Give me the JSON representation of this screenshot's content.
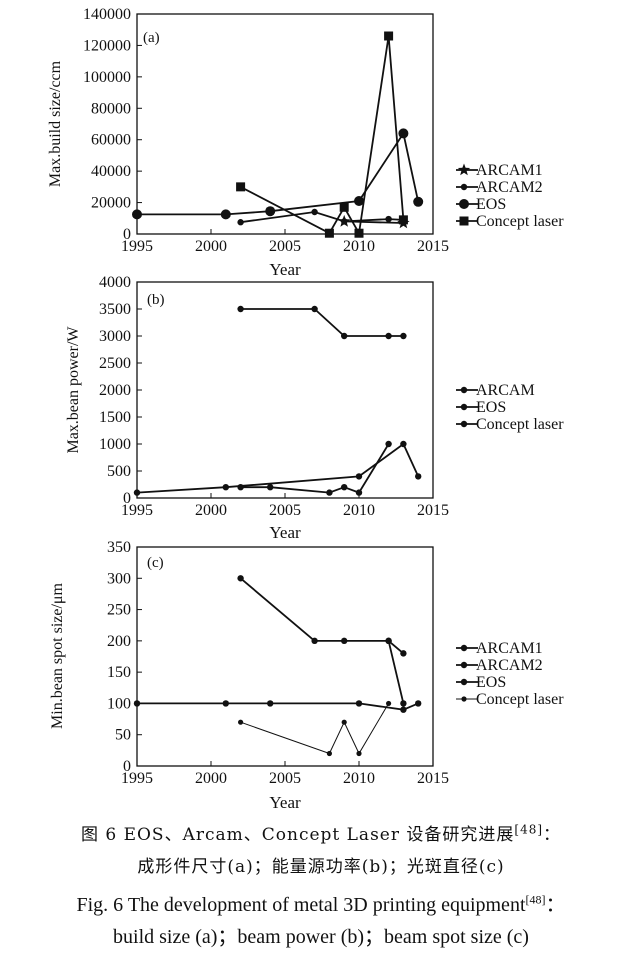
{
  "chart_data": [
    {
      "type": "line",
      "panel_label": "(a)",
      "xlabel": "Year",
      "ylabel": "Max.build size/ccm",
      "xlim": [
        1995,
        2015
      ],
      "ylim": [
        0,
        140000
      ],
      "xticks": [
        1995,
        2000,
        2005,
        2010,
        2015
      ],
      "yticks": [
        0,
        20000,
        40000,
        60000,
        80000,
        100000,
        120000,
        140000
      ],
      "legend_position": "right",
      "series": [
        {
          "name": "ARCAM1",
          "marker": "star",
          "points": [
            [
              2009,
              8000
            ],
            [
              2013,
              7000
            ]
          ]
        },
        {
          "name": "ARCAM2",
          "marker": "dot",
          "points": [
            [
              2002,
              7500
            ],
            [
              2007,
              14000
            ],
            [
              2009,
              8000
            ],
            [
              2012,
              9500
            ],
            [
              2013,
              9000
            ]
          ]
        },
        {
          "name": "EOS",
          "marker": "circle",
          "points": [
            [
              1995,
              12500
            ],
            [
              2001,
              12500
            ],
            [
              2004,
              14500
            ],
            [
              2010,
              21000
            ],
            [
              2013,
              64000
            ],
            [
              2014,
              20500
            ]
          ]
        },
        {
          "name": "Concept laser",
          "marker": "square",
          "points": [
            [
              2002,
              30000
            ],
            [
              2008,
              500
            ],
            [
              2009,
              17000
            ],
            [
              2010,
              500
            ],
            [
              2012,
              126000
            ],
            [
              2013,
              9000
            ]
          ]
        }
      ]
    },
    {
      "type": "line",
      "panel_label": "(b)",
      "xlabel": "Year",
      "ylabel": "Max.bean power/W",
      "xlim": [
        1995,
        2015
      ],
      "ylim": [
        0,
        4000
      ],
      "xticks": [
        1995,
        2000,
        2005,
        2010,
        2015
      ],
      "yticks": [
        0,
        500,
        1000,
        1500,
        2000,
        2500,
        3000,
        3500,
        4000
      ],
      "legend_position": "right",
      "series": [
        {
          "name": "ARCAM",
          "marker": "dot",
          "points": [
            [
              2002,
              3500
            ],
            [
              2007,
              3500
            ],
            [
              2009,
              3000
            ],
            [
              2012,
              3000
            ],
            [
              2013,
              3000
            ]
          ]
        },
        {
          "name": "EOS",
          "marker": "dot",
          "points": [
            [
              1995,
              100
            ],
            [
              2001,
              200
            ],
            [
              2010,
              400
            ],
            [
              2013,
              1000
            ],
            [
              2014,
              400
            ]
          ]
        },
        {
          "name": "Concept laser",
          "marker": "dot",
          "points": [
            [
              2002,
              200
            ],
            [
              2004,
              200
            ],
            [
              2008,
              100
            ],
            [
              2009,
              200
            ],
            [
              2010,
              100
            ],
            [
              2012,
              1000
            ]
          ]
        }
      ]
    },
    {
      "type": "line",
      "panel_label": "(c)",
      "xlabel": "Year",
      "ylabel": "Min.bean spot size/μm",
      "xlim": [
        1995,
        2015
      ],
      "ylim": [
        0,
        350
      ],
      "xticks": [
        1995,
        2000,
        2005,
        2010,
        2015
      ],
      "yticks": [
        0,
        50,
        100,
        150,
        200,
        250,
        300,
        350
      ],
      "legend_position": "right",
      "series": [
        {
          "name": "ARCAM1",
          "marker": "dot",
          "points": [
            [
              2002,
              300
            ],
            [
              2007,
              200
            ],
            [
              2009,
              200
            ],
            [
              2012,
              200
            ],
            [
              2013,
              180
            ]
          ]
        },
        {
          "name": "ARCAM2",
          "marker": "dot",
          "points": [
            [
              2012,
              200
            ],
            [
              2013,
              100
            ]
          ]
        },
        {
          "name": "EOS",
          "marker": "dot",
          "points": [
            [
              1995,
              100
            ],
            [
              2001,
              100
            ],
            [
              2004,
              100
            ],
            [
              2010,
              100
            ],
            [
              2013,
              90
            ],
            [
              2014,
              100
            ]
          ]
        },
        {
          "name": "Concept laser",
          "marker": "dot",
          "thin": true,
          "points": [
            [
              2002,
              70
            ],
            [
              2008,
              20
            ],
            [
              2009,
              70
            ],
            [
              2010,
              20
            ],
            [
              2012,
              100
            ]
          ]
        }
      ]
    }
  ],
  "caption": {
    "cn_line1_a": "图 6   EOS、Arcam、Concept Laser 设备研究进展",
    "cn_line1_ref": "[48]",
    "cn_line1_b": "：",
    "cn_line2": "成形件尺寸(a)；能量源功率(b)；光斑直径(c)",
    "en_line1_a": "Fig. 6   The development of metal 3D printing equipment",
    "en_line1_ref": "[48]",
    "en_line1_b": "：",
    "en_line2": "build size (a)；beam power (b)；beam spot size (c)"
  }
}
